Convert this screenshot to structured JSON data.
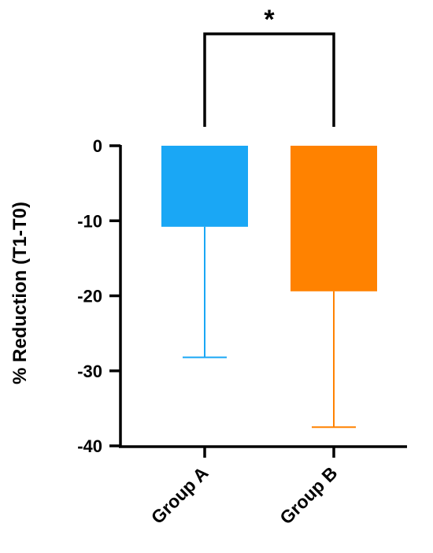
{
  "chart_data": {
    "type": "bar",
    "categories": [
      "Group A",
      "Group B"
    ],
    "values": [
      -10.8,
      -19.4
    ],
    "error_bars": [
      -28.2,
      -37.5
    ],
    "colors": [
      "#1AA7F5",
      "#FF8200"
    ],
    "ylabel": "% Reduction (T1-T0)",
    "ylim": [
      -40,
      0
    ],
    "yticks": [
      0,
      -10,
      -20,
      -30,
      -40
    ],
    "ytick_labels": [
      "0",
      "-10",
      "-20",
      "-30",
      "-40"
    ],
    "significance": {
      "between": [
        "Group A",
        "Group B"
      ],
      "label": "*"
    },
    "grid": false
  }
}
